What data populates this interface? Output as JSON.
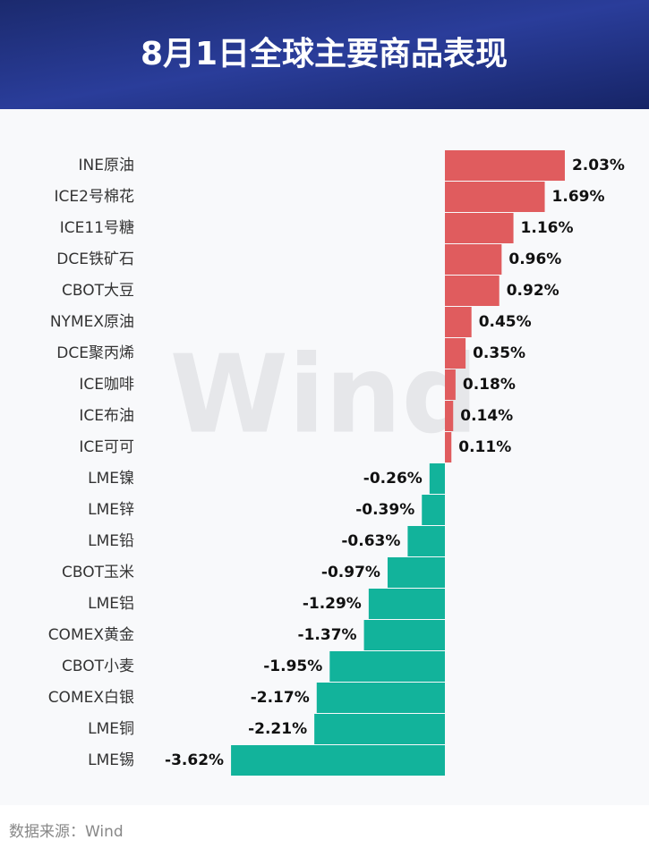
{
  "chart_data": {
    "type": "bar",
    "orientation": "horizontal",
    "title": "8月1日全球主要商品表现",
    "categories": [
      "INE原油",
      "ICE2号棉花",
      "ICE11号糖",
      "DCE铁矿石",
      "CBOT大豆",
      "NYMEX原油",
      "DCE聚丙烯",
      "ICE咖啡",
      "ICE布油",
      "ICE可可",
      "LME镍",
      "LME锌",
      "LME铅",
      "CBOT玉米",
      "LME铝",
      "COMEX黄金",
      "CBOT小麦",
      "COMEX白银",
      "LME铜",
      "LME锡"
    ],
    "values": [
      2.03,
      1.69,
      1.16,
      0.96,
      0.92,
      0.45,
      0.35,
      0.18,
      0.14,
      0.11,
      -0.26,
      -0.39,
      -0.63,
      -0.97,
      -1.29,
      -1.37,
      -1.95,
      -2.17,
      -2.21,
      -3.62
    ],
    "value_labels": [
      "2.03%",
      "1.69%",
      "1.16%",
      "0.96%",
      "0.92%",
      "0.45%",
      "0.35%",
      "0.18%",
      "0.14%",
      "0.11%",
      "-0.26%",
      "-0.39%",
      "-0.63%",
      "-0.97%",
      "-1.29%",
      "-1.37%",
      "-1.95%",
      "-2.17%",
      "-2.21%",
      "-3.62%"
    ],
    "positive_color": "#e05c5e",
    "negative_color": "#12b39b",
    "watermark": "Wind",
    "source": "数据来源：Wind"
  }
}
